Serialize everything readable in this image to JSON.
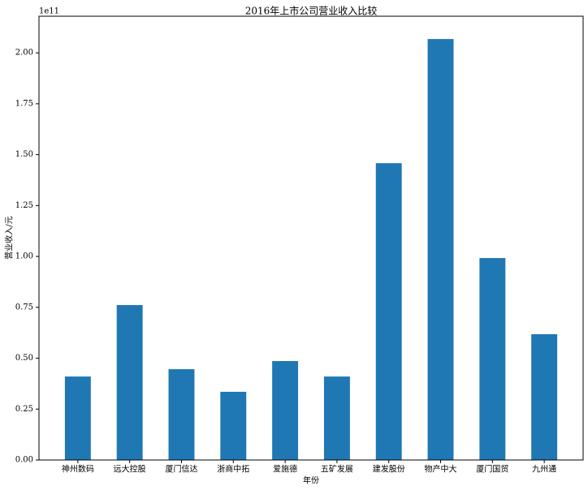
{
  "chart_data": {
    "type": "bar",
    "title": "2016年上市公司营业收入比较",
    "x_label": "年份",
    "y_label": "营业收入/元",
    "y_offset_label": "1e11",
    "categories": [
      "神州数码",
      "远大控股",
      "厦门信达",
      "浙商中拓",
      "爱施德",
      "五矿发展",
      "建发股份",
      "物产中大",
      "厦门国贸",
      "九州通"
    ],
    "values": [
      0.41,
      0.761,
      0.446,
      0.335,
      0.486,
      0.41,
      1.458,
      2.068,
      0.992,
      0.618
    ],
    "color": "#1f77b4",
    "ylim": [
      0,
      2.18
    ],
    "yticks": [
      {
        "value": 0,
        "label": "0.00"
      },
      0.25,
      {
        "value": 0.5,
        "label": "0.50"
      },
      0.75,
      {
        "value": 1,
        "label": "1.00"
      },
      1.25,
      {
        "value": 1.5,
        "label": "1.50"
      },
      1.75,
      {
        "value": 2,
        "label": "2.00"
      }
    ],
    "grid": false
  }
}
